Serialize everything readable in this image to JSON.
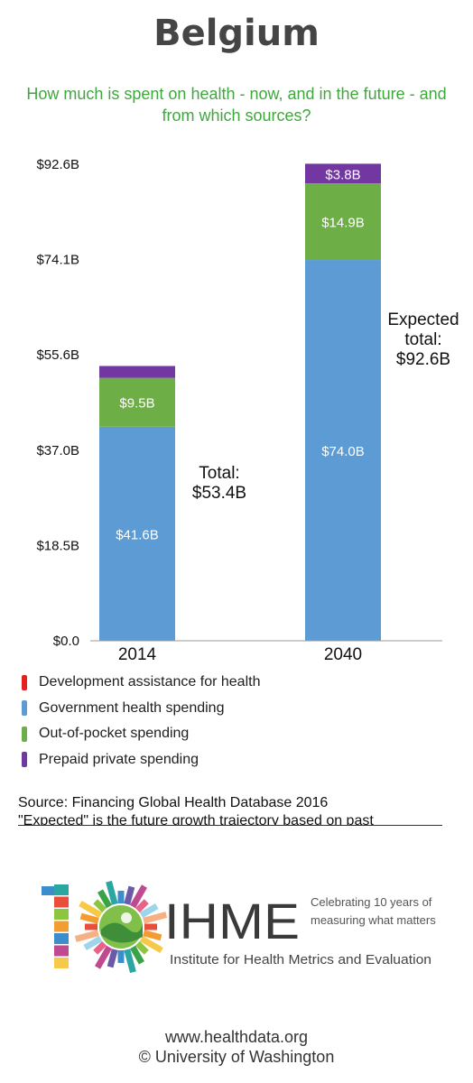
{
  "header": {
    "title": "Belgium",
    "subtitle": "How much is spent on health - now, and in the future - and from which sources?"
  },
  "chart_data": {
    "type": "bar",
    "stacked": true,
    "categories": [
      "2014",
      "2040"
    ],
    "ylim": [
      0,
      92.6
    ],
    "yticks": [
      "$0.0",
      "$18.5B",
      "$37.0B",
      "$55.6B",
      "$74.1B",
      "$92.6B"
    ],
    "ytick_values": [
      0,
      18.5,
      37.0,
      55.6,
      74.1,
      92.6
    ],
    "series": [
      {
        "name": "Development assistance for health",
        "color": "#e3231f",
        "values": [
          0,
          0
        ],
        "labels": [
          "",
          ""
        ]
      },
      {
        "name": "Government health spending",
        "color": "#5d9bd5",
        "values": [
          41.6,
          74.0
        ],
        "labels": [
          "$41.6B",
          "$74.0B"
        ]
      },
      {
        "name": "Out-of-pocket spending",
        "color": "#6eae47",
        "values": [
          9.5,
          14.9
        ],
        "labels": [
          "$9.5B",
          "$14.9B"
        ]
      },
      {
        "name": "Prepaid private spending",
        "color": "#7237a0",
        "values": [
          2.3,
          3.8
        ],
        "labels": [
          "",
          "$3.8B"
        ]
      }
    ],
    "totals": [
      {
        "category": "2014",
        "lines": [
          "Total:",
          "$53.4B"
        ]
      },
      {
        "category": "2040",
        "lines": [
          "Expected",
          "total:",
          "$92.6B"
        ]
      }
    ],
    "grid": false,
    "legend": "bottom"
  },
  "source": {
    "line1": "Source: Financing Global Health Database 2016",
    "line2": "\"Expected\" is the future growth trajectory based on past"
  },
  "logo": {
    "numeral": "10",
    "acronym": "IHME",
    "tagline1": "Celebrating 10 years of",
    "tagline2": "measuring what matters",
    "name": "Institute for Health Metrics and Evaluation"
  },
  "footer": {
    "url": "www.healthdata.org",
    "copyright": "© University of Washington"
  }
}
